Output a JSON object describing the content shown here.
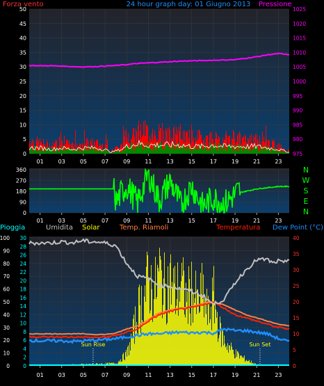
{
  "title": "24 hour graph day: 01 Giugno 2013",
  "hour_labels": [
    "01",
    "03",
    "05",
    "07",
    "09",
    "11",
    "13",
    "15",
    "17",
    "19",
    "21",
    "23"
  ],
  "colors": {
    "background": "#000000",
    "plot_top": "#23232a",
    "plot_bottom": "#0b3f6e",
    "grid": "#3a3a3a",
    "wind": "#ff0000",
    "wind_avg": "#008800",
    "wind_line": "#ffffff",
    "pressure": "#ff00ff",
    "direction": "#00ff00",
    "humidity": "#c0c0c0",
    "solar": "#ffff00",
    "temp_ext": "#ff2000",
    "temp_int": "#ff8040",
    "dewpoint": "#1e90ff",
    "rain": "#00ffff"
  },
  "chart_data": [
    {
      "type": "area",
      "name": "wind-pressure",
      "left_label": "Forza vento",
      "right_label": "Pressione",
      "left_ticks": [
        "0",
        "5",
        "10",
        "15",
        "20",
        "25",
        "30",
        "35",
        "40",
        "45",
        "50"
      ],
      "right_ticks": [
        "975",
        "980",
        "985",
        "990",
        "995",
        "1000",
        "1005",
        "1010",
        "1015",
        "1020",
        "1025"
      ],
      "ylim_left": [
        0,
        50
      ],
      "ylim_right": [
        975,
        1025
      ],
      "xlim": [
        0,
        24
      ],
      "series": [
        {
          "name": "Pressione",
          "x": [
            0,
            1,
            2,
            3,
            4,
            5,
            6,
            7,
            8,
            9,
            10,
            11,
            12,
            13,
            14,
            15,
            16,
            17,
            18,
            19,
            20,
            21,
            22,
            23,
            24
          ],
          "values": [
            1005.5,
            1005.4,
            1005.4,
            1005.3,
            1005.1,
            1005.0,
            1005.1,
            1005.3,
            1005.5,
            1005.8,
            1006.2,
            1006.4,
            1006.6,
            1006.8,
            1007.0,
            1007.1,
            1007.2,
            1007.3,
            1007.4,
            1007.5,
            1008.0,
            1008.5,
            1009.2,
            1009.6,
            1009.2
          ]
        },
        {
          "x": [
            0,
            1,
            2,
            3,
            4,
            5,
            6,
            7,
            7.5,
            8,
            8.5,
            9,
            10,
            11,
            12,
            13,
            14,
            15,
            16,
            17,
            18,
            19,
            20,
            21,
            22,
            23,
            24
          ],
          "values": [
            5,
            4,
            3,
            4,
            3,
            4,
            4,
            3,
            1,
            2,
            4,
            7,
            9,
            8,
            8,
            7,
            7,
            6,
            6,
            6,
            5,
            6,
            5,
            5,
            4,
            3,
            1
          ]
        },
        {
          "x": [
            0,
            1,
            2,
            3,
            4,
            5,
            6,
            7,
            7.5,
            8,
            8.5,
            9,
            10,
            11,
            12,
            13,
            14,
            15,
            16,
            17,
            18,
            19,
            20,
            21,
            22,
            23,
            24
          ],
          "values": [
            2,
            2,
            1.5,
            2,
            1.5,
            2,
            2,
            1.5,
            0.5,
            1,
            1.5,
            2.5,
            3.5,
            3,
            3,
            3,
            3,
            2.5,
            2.5,
            3,
            2.5,
            2.5,
            2.5,
            2.5,
            2,
            1.5,
            0.5
          ]
        }
      ]
    },
    {
      "type": "line",
      "name": "wind-direction",
      "left_ticks": [
        "0",
        "90",
        "180",
        "270",
        "360"
      ],
      "right_labels": [
        "N",
        "W",
        "S",
        "E",
        "N"
      ],
      "ylim": [
        0,
        360
      ],
      "xlim": [
        0,
        24
      ],
      "series": [
        {
          "x": [
            0,
            7.8,
            8,
            8.5,
            9,
            10,
            11,
            12,
            13,
            14,
            15,
            16,
            17,
            18,
            19,
            19.5,
            20,
            21,
            22,
            23,
            24
          ],
          "values": [
            200,
            200,
            60,
            140,
            200,
            60,
            300,
            80,
            240,
            40,
            200,
            30,
            100,
            50,
            130,
            170,
            180,
            200,
            210,
            220,
            220
          ]
        }
      ]
    },
    {
      "type": "area",
      "name": "main",
      "labels": {
        "rain": "Pioggia",
        "humidity": "Umidita",
        "solar": "Solar",
        "temp_int": "Temp. Riamoli",
        "temp_ext": "Temperatura",
        "dewpoint": "Dew Point (°C)"
      },
      "rain_ticks": [
        "0",
        "10",
        "20",
        "30",
        "40",
        "50",
        "60",
        "70",
        "80",
        "90",
        "100"
      ],
      "hum_ticks": [
        "0",
        "2",
        "4",
        "6",
        "8",
        "10",
        "12",
        "14",
        "16",
        "18",
        "20",
        "22",
        "24",
        "26",
        "28",
        "30"
      ],
      "temp_ticks": [
        "0",
        "5",
        "10",
        "15",
        "20",
        "25",
        "30",
        "35",
        "40"
      ],
      "ylim_rain": [
        0,
        100
      ],
      "ylim_hum": [
        0,
        30
      ],
      "ylim_temp": [
        0,
        40
      ],
      "xlim": [
        0,
        24
      ],
      "sun_rise": {
        "x": 5.9,
        "label": "Sun Rise"
      },
      "sun_set": {
        "x": 21.3,
        "label": "Sun Set"
      },
      "series": [
        {
          "name": "Umidita",
          "x": [
            0,
            1,
            2,
            3,
            4,
            5,
            5.5,
            6,
            7,
            8,
            9,
            10,
            11,
            12,
            13,
            14,
            15,
            16,
            17,
            18,
            19,
            20,
            21,
            22,
            22.5,
            23,
            23.5,
            24
          ],
          "values": [
            96,
            96,
            96,
            97,
            96,
            98,
            97,
            97,
            96,
            94,
            80,
            70,
            68,
            63,
            62,
            60,
            58,
            55,
            48,
            52,
            65,
            75,
            83,
            83,
            80,
            82,
            80,
            84
          ]
        },
        {
          "name": "Solar",
          "x": [
            0,
            8,
            9,
            9.5,
            10,
            10.5,
            11,
            11.5,
            12,
            12.5,
            13,
            13.5,
            14,
            14.5,
            15,
            15.5,
            16,
            16.5,
            17,
            17.5,
            18,
            19,
            20,
            21,
            24
          ],
          "values": [
            0,
            2,
            10,
            24,
            45,
            55,
            70,
            58,
            76,
            62,
            70,
            58,
            68,
            52,
            64,
            48,
            60,
            40,
            56,
            30,
            20,
            10,
            5,
            1,
            0
          ]
        },
        {
          "name": "Temperatura",
          "x": [
            0,
            1,
            2,
            3,
            4,
            5,
            6,
            7,
            8,
            9,
            10,
            11,
            12,
            13,
            14,
            15,
            16,
            17,
            18,
            19,
            20,
            21,
            22,
            23,
            24
          ],
          "values": [
            9.2,
            9.0,
            9.0,
            9.0,
            9.0,
            9.0,
            8.8,
            9.0,
            9.5,
            10.5,
            11.5,
            14,
            16,
            17,
            17.8,
            18.2,
            19,
            20,
            18,
            16,
            15,
            14,
            13,
            12,
            11.5
          ]
        },
        {
          "name": "Temp. Riamoli",
          "x": [
            0,
            1,
            2,
            3,
            4,
            5,
            6,
            7,
            8,
            9,
            10,
            11,
            12,
            13,
            14,
            15,
            16,
            17,
            18,
            19,
            20,
            21,
            22,
            23,
            24
          ],
          "values": [
            10.0,
            10.0,
            10.0,
            10.0,
            10.0,
            10.0,
            9.8,
            9.8,
            10.2,
            11.5,
            12.5,
            14.5,
            16.5,
            17.5,
            18,
            18.5,
            19.5,
            20,
            19,
            17.5,
            16,
            15,
            14,
            13,
            12.5
          ]
        },
        {
          "name": "Dew Point",
          "x": [
            0,
            1,
            2,
            3,
            4,
            5,
            6,
            7,
            8,
            9,
            10,
            11,
            12,
            13,
            14,
            15,
            16,
            17,
            18,
            19,
            20,
            21,
            22,
            23,
            24
          ],
          "values": [
            8.0,
            7.8,
            7.8,
            7.8,
            7.6,
            7.8,
            8.0,
            8.2,
            8.5,
            9,
            9.5,
            10,
            10,
            10.3,
            10.5,
            10.3,
            10.5,
            10.2,
            11.5,
            11,
            11,
            10.5,
            10,
            8.5,
            7.5
          ]
        },
        {
          "name": "Pioggia",
          "x": [
            0,
            24
          ],
          "values": [
            0,
            0
          ]
        }
      ]
    }
  ]
}
